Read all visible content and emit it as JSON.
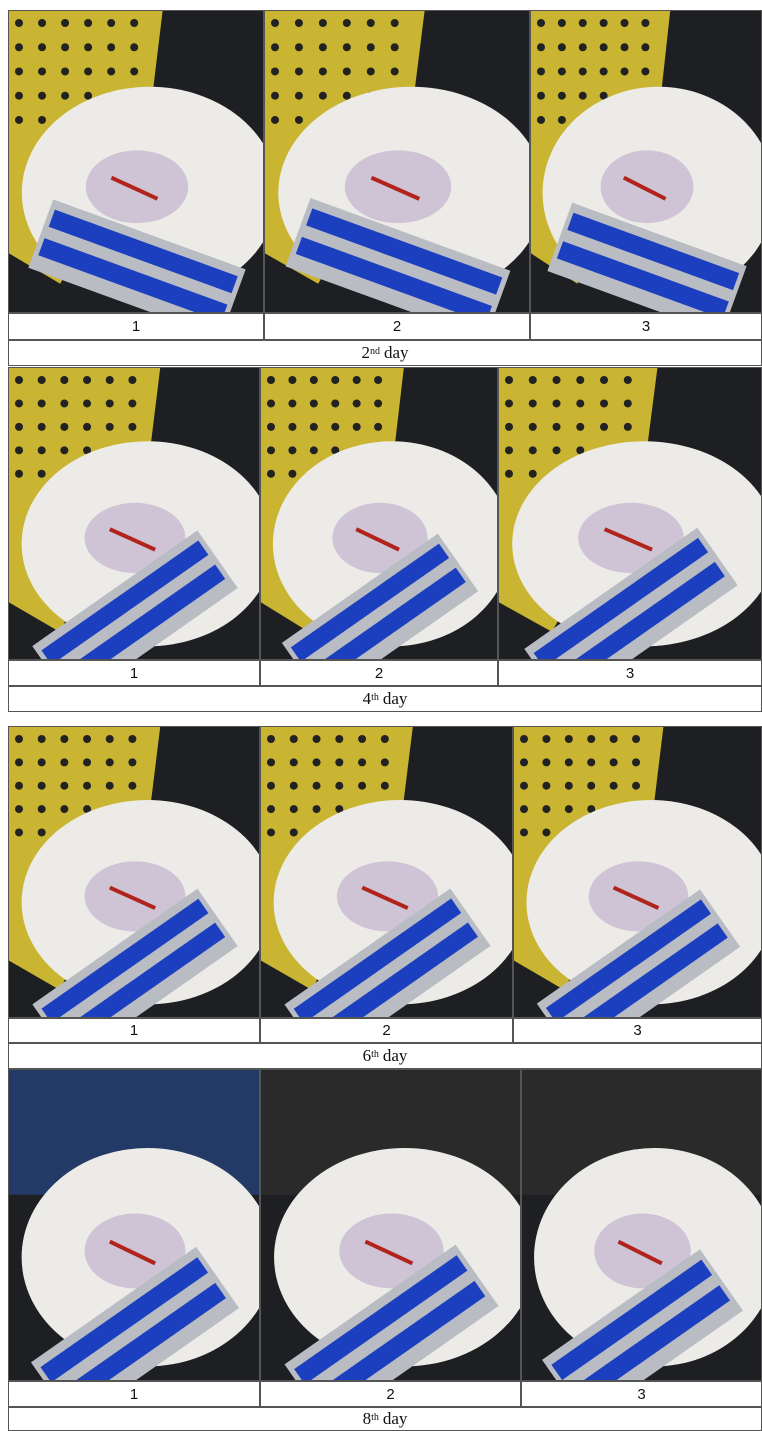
{
  "blocks": [
    {
      "columns": [
        "1",
        "2",
        "3"
      ],
      "day": {
        "number": "2",
        "suffix": "nd",
        "word": "day"
      }
    },
    {
      "columns": [
        "1",
        "2",
        "3"
      ],
      "day": {
        "number": "4",
        "suffix": "th",
        "word": "day"
      }
    },
    {
      "columns": [
        "1",
        "2",
        "3"
      ],
      "day": {
        "number": "6",
        "suffix": "th",
        "word": "day"
      }
    },
    {
      "columns": [
        "1",
        "2",
        "3"
      ],
      "day": {
        "number": "8",
        "suffix": "th",
        "word": "day"
      }
    }
  ]
}
